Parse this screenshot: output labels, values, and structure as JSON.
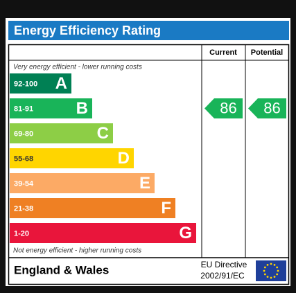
{
  "title": "Energy Efficiency Rating",
  "columns": [
    "Current",
    "Potential"
  ],
  "top_note": "Very energy efficient - lower running costs",
  "bottom_note": "Not energy efficient - higher running costs",
  "bands": [
    {
      "range": "92-100",
      "letter": "A",
      "color": "#008054"
    },
    {
      "range": "81-91",
      "letter": "B",
      "color": "#19b459"
    },
    {
      "range": "69-80",
      "letter": "C",
      "color": "#8dce46"
    },
    {
      "range": "55-68",
      "letter": "D",
      "color": "#ffd500"
    },
    {
      "range": "39-54",
      "letter": "E",
      "color": "#fcaa65"
    },
    {
      "range": "21-38",
      "letter": "F",
      "color": "#ef8023"
    },
    {
      "range": "1-20",
      "letter": "G",
      "color": "#e9153b"
    }
  ],
  "current": 86,
  "potential": 86,
  "region": "England & Wales",
  "directive": [
    "EU Directive",
    "2002/91/EC"
  ]
}
